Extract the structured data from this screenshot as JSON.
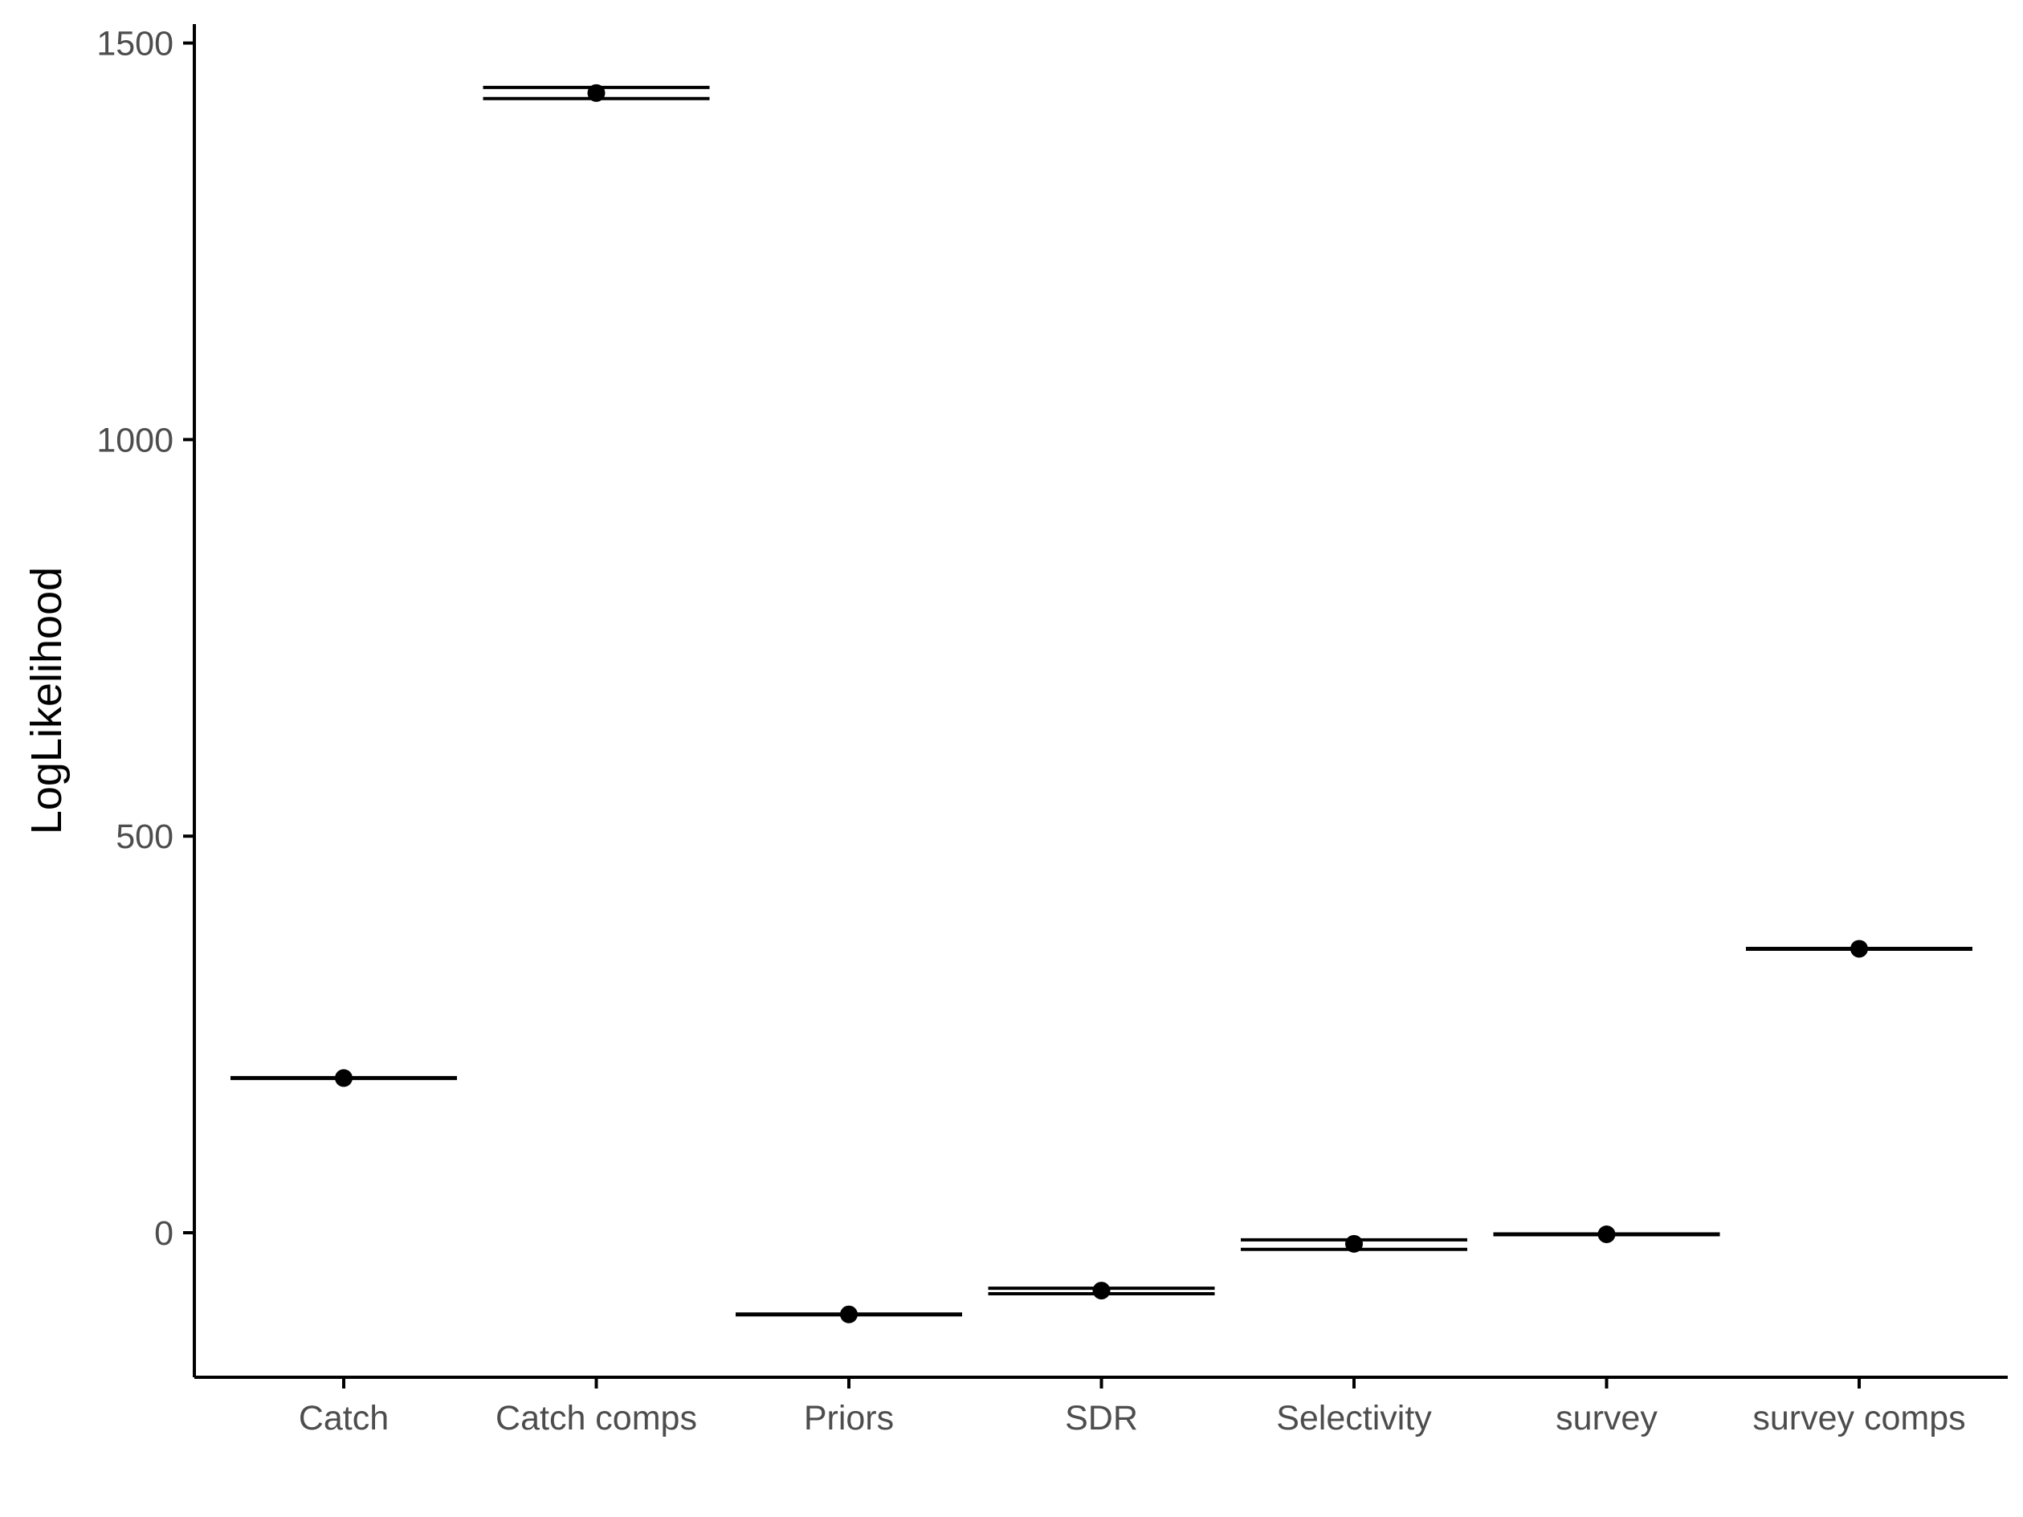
{
  "chart_data": {
    "type": "scatter",
    "title": "",
    "xlabel": "",
    "ylabel": "LogLikelihood",
    "categories": [
      "Catch",
      "Catch comps",
      "Priors",
      "SDR",
      "Selectivity",
      "survey",
      "survey comps"
    ],
    "series": [
      {
        "points": [
          {
            "category": "Catch",
            "value": 195,
            "lines": [
              195
            ]
          },
          {
            "category": "Catch comps",
            "value": 1437,
            "lines": [
              1444,
              1430
            ]
          },
          {
            "category": "Priors",
            "value": -103,
            "lines": [
              -103
            ]
          },
          {
            "category": "SDR",
            "value": -73,
            "lines": [
              -70,
              -77
            ]
          },
          {
            "category": "Selectivity",
            "value": -14,
            "lines": [
              -9,
              -21
            ]
          },
          {
            "category": "survey",
            "value": -2,
            "lines": [
              -2
            ]
          },
          {
            "category": "survey comps",
            "value": 358,
            "lines": [
              358
            ]
          }
        ]
      }
    ],
    "yticks": [
      0,
      500,
      1000,
      1500
    ],
    "ylim": [
      -182,
      1525
    ],
    "grid": false,
    "legend": "none",
    "colors": {
      "axis": "#000000",
      "tick_text": "#4d4d4d",
      "marks": "#000000"
    }
  }
}
